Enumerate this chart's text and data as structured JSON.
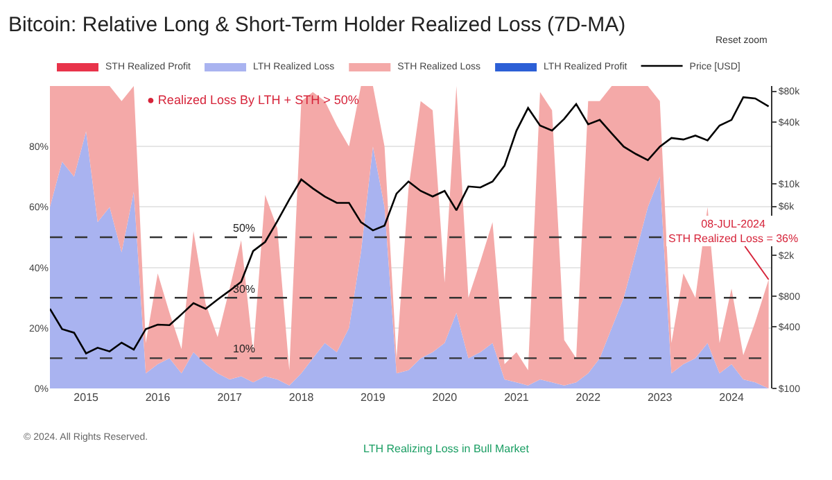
{
  "chart_data": {
    "type": "area",
    "stacked": true,
    "title": "Bitcoin: Relative Long & Short-Term Holder Realized Loss (7D-MA)",
    "x": [
      "2014-07",
      "2014-09",
      "2014-11",
      "2015-01",
      "2015-03",
      "2015-05",
      "2015-07",
      "2015-09",
      "2015-11",
      "2016-01",
      "2016-03",
      "2016-05",
      "2016-07",
      "2016-09",
      "2016-11",
      "2017-01",
      "2017-03",
      "2017-05",
      "2017-07",
      "2017-09",
      "2017-11",
      "2018-01",
      "2018-03",
      "2018-05",
      "2018-07",
      "2018-09",
      "2018-11",
      "2019-01",
      "2019-03",
      "2019-05",
      "2019-07",
      "2019-09",
      "2019-11",
      "2020-01",
      "2020-03",
      "2020-05",
      "2020-07",
      "2020-09",
      "2020-11",
      "2021-01",
      "2021-03",
      "2021-05",
      "2021-07",
      "2021-09",
      "2021-11",
      "2022-01",
      "2022-03",
      "2022-05",
      "2022-07",
      "2022-09",
      "2022-11",
      "2023-01",
      "2023-03",
      "2023-05",
      "2023-07",
      "2023-09",
      "2023-11",
      "2024-01",
      "2024-03",
      "2024-05",
      "2024-07-08"
    ],
    "series": [
      {
        "name": "STH Realized Profit",
        "color": "#e8334a",
        "values": [
          null,
          null,
          null,
          null,
          null,
          null,
          null,
          null,
          null,
          null,
          null,
          null,
          null,
          null,
          null,
          null,
          null,
          null,
          null,
          null,
          null,
          null,
          null,
          null,
          null,
          null,
          null,
          null,
          null,
          null,
          null,
          null,
          null,
          null,
          null,
          null,
          null,
          null,
          null,
          null,
          null,
          null,
          null,
          null,
          null,
          null,
          null,
          null,
          null,
          null,
          null,
          null,
          null,
          null,
          null,
          null,
          null,
          null,
          null,
          null,
          null
        ]
      },
      {
        "name": "LTH Realized Loss",
        "color": "#a9b3f0",
        "values": [
          60,
          75,
          70,
          85,
          55,
          60,
          45,
          65,
          5,
          8,
          10,
          5,
          12,
          8,
          5,
          3,
          4,
          2,
          4,
          3,
          1,
          5,
          10,
          15,
          12,
          20,
          45,
          80,
          60,
          5,
          6,
          10,
          12,
          15,
          25,
          10,
          12,
          15,
          3,
          2,
          1,
          3,
          2,
          1,
          2,
          5,
          10,
          20,
          30,
          45,
          60,
          70,
          5,
          8,
          10,
          15,
          5,
          8,
          3,
          2,
          0
        ]
      },
      {
        "name": "STH Realized Loss",
        "color": "#f4a9a8",
        "values": [
          40,
          25,
          30,
          15,
          45,
          40,
          50,
          35,
          10,
          30,
          15,
          8,
          40,
          20,
          12,
          30,
          45,
          10,
          60,
          50,
          5,
          90,
          88,
          80,
          75,
          60,
          55,
          20,
          20,
          5,
          60,
          85,
          80,
          20,
          75,
          20,
          30,
          40,
          5,
          10,
          5,
          95,
          90,
          15,
          8,
          90,
          85,
          80,
          70,
          55,
          40,
          25,
          10,
          30,
          20,
          45,
          10,
          25,
          8,
          20,
          36
        ]
      },
      {
        "name": "LTH Realized Profit",
        "color": "#2c5fd6",
        "values": [
          null,
          null,
          null,
          null,
          null,
          null,
          null,
          null,
          null,
          null,
          null,
          null,
          null,
          null,
          null,
          null,
          null,
          null,
          null,
          null,
          null,
          null,
          null,
          null,
          null,
          null,
          null,
          null,
          null,
          null,
          null,
          null,
          null,
          null,
          null,
          null,
          null,
          null,
          null,
          null,
          null,
          null,
          null,
          null,
          null,
          null,
          null,
          null,
          null,
          null,
          null,
          null,
          null,
          null,
          null,
          null,
          null,
          null,
          null,
          null,
          null
        ]
      },
      {
        "name": "Price [USD]",
        "type": "line",
        "axis": "y2",
        "color": "#000000",
        "values": [
          600,
          380,
          350,
          220,
          250,
          230,
          280,
          240,
          380,
          420,
          415,
          530,
          680,
          600,
          740,
          900,
          1100,
          2200,
          2700,
          4300,
          7000,
          11000,
          9000,
          7500,
          6500,
          6500,
          4200,
          3500,
          3900,
          8000,
          10500,
          8500,
          7500,
          8500,
          5500,
          9400,
          9200,
          10500,
          15000,
          33000,
          55000,
          37000,
          33000,
          43000,
          60000,
          38000,
          42000,
          31000,
          23000,
          19500,
          17000,
          23000,
          28000,
          27000,
          29500,
          26500,
          37000,
          42000,
          70000,
          68000,
          57000
        ]
      }
    ],
    "xlim": [
      "2014-07-01",
      "2024-07-20"
    ],
    "xticks": [
      "2015",
      "2016",
      "2017",
      "2018",
      "2019",
      "2020",
      "2021",
      "2022",
      "2023",
      "2024"
    ],
    "ylim": [
      0,
      100
    ],
    "yticks": [
      {
        "value": 0,
        "label": "0%"
      },
      {
        "value": 20,
        "label": "20%"
      },
      {
        "value": 40,
        "label": "40%"
      },
      {
        "value": 60,
        "label": "60%"
      },
      {
        "value": 80,
        "label": "80%"
      }
    ],
    "y2lim": [
      100,
      90000
    ],
    "y2ticks": [
      {
        "value": 100,
        "label": "$100"
      },
      {
        "value": 400,
        "label": "$400"
      },
      {
        "value": 800,
        "label": "$800"
      },
      {
        "value": 2000,
        "label": "$2k"
      },
      {
        "value": 6000,
        "label": "$6k"
      },
      {
        "value": 10000,
        "label": "$10k"
      },
      {
        "value": 40000,
        "label": "$40k"
      },
      {
        "value": 80000,
        "label": "$80k"
      }
    ],
    "log": "y2",
    "grid": "y",
    "legend": "top left",
    "ref_lines": [
      {
        "axis": "y",
        "value": 50,
        "label": "50%",
        "color": "#333333",
        "line_style": "dashed"
      },
      {
        "axis": "y",
        "value": 30,
        "label": "30%",
        "color": "#333333",
        "line_style": "dashed"
      },
      {
        "axis": "y",
        "value": 10,
        "label": "10%",
        "color": "#333333",
        "line_style": "dashed"
      }
    ],
    "annotations": [
      "● Realized Loss By LTH + STH > 50%",
      {
        "text": "08-JUL-2024\nSTH Realized Loss = 36%",
        "x": "2024-07-08",
        "y": 36
      },
      "LTH Realizing Loss in Bull Market",
      "© 2024. All Rights Reserved.",
      "Reset zoom"
    ]
  }
}
